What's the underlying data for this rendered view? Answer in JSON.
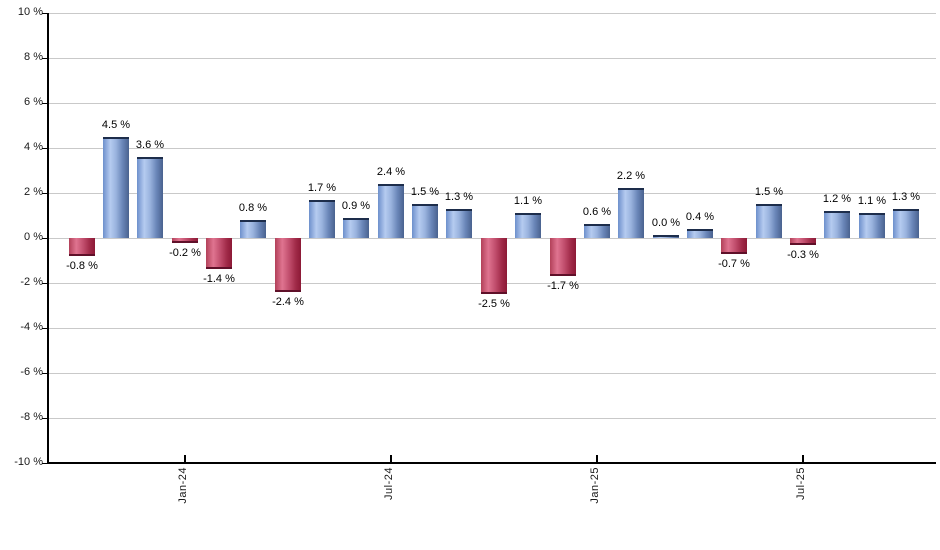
{
  "chart_data": {
    "type": "bar",
    "title": "",
    "xlabel": "",
    "ylabel": "",
    "ylim": [
      -10,
      10
    ],
    "grid": true,
    "legend": "none",
    "value_label_format": "signed percent with space, e.g. 4.5 %",
    "y_ticks": [
      {
        "value": 10,
        "label": "10 %"
      },
      {
        "value": 8,
        "label": "8 %"
      },
      {
        "value": 6,
        "label": "6 %"
      },
      {
        "value": 4,
        "label": "4 %"
      },
      {
        "value": 2,
        "label": "2 %"
      },
      {
        "value": 0,
        "label": "0 %"
      },
      {
        "value": -2,
        "label": "-2 %"
      },
      {
        "value": -4,
        "label": "-4 %"
      },
      {
        "value": -6,
        "label": "-6 %"
      },
      {
        "value": -8,
        "label": "-8 %"
      },
      {
        "value": -10,
        "label": "-10 %"
      }
    ],
    "x_tick_labels": [
      {
        "bar_index": 3,
        "label": "Jan-24"
      },
      {
        "bar_index": 9,
        "label": "Jul-24"
      },
      {
        "bar_index": 15,
        "label": "Jan-25"
      },
      {
        "bar_index": 21,
        "label": "Jul-25"
      }
    ],
    "bars": [
      {
        "value": -0.8,
        "label": "-0.8 %"
      },
      {
        "value": 4.5,
        "label": "4.5 %"
      },
      {
        "value": 3.6,
        "label": "3.6 %"
      },
      {
        "value": -0.2,
        "label": "-0.2 %"
      },
      {
        "value": -1.4,
        "label": "-1.4 %"
      },
      {
        "value": 0.8,
        "label": "0.8 %"
      },
      {
        "value": -2.4,
        "label": "-2.4 %"
      },
      {
        "value": 1.7,
        "label": "1.7 %"
      },
      {
        "value": 0.9,
        "label": "0.9 %"
      },
      {
        "value": 2.4,
        "label": "2.4 %"
      },
      {
        "value": 1.5,
        "label": "1.5 %"
      },
      {
        "value": 1.3,
        "label": "1.3 %"
      },
      {
        "value": -2.5,
        "label": "-2.5 %"
      },
      {
        "value": 1.1,
        "label": "1.1 %"
      },
      {
        "value": -1.7,
        "label": "-1.7 %"
      },
      {
        "value": 0.6,
        "label": "0.6 %"
      },
      {
        "value": 2.2,
        "label": "2.2 %"
      },
      {
        "value": 0.0,
        "label": "0.0 %"
      },
      {
        "value": 0.4,
        "label": "0.4 %"
      },
      {
        "value": -0.7,
        "label": "-0.7 %"
      },
      {
        "value": 1.5,
        "label": "1.5 %"
      },
      {
        "value": -0.3,
        "label": "-0.3 %"
      },
      {
        "value": 1.2,
        "label": "1.2 %"
      },
      {
        "value": 1.1,
        "label": "1.1 %"
      },
      {
        "value": 1.3,
        "label": "1.3 %"
      }
    ],
    "colors": {
      "positive_gradient": [
        "#6d90cc",
        "#b5cbf0",
        "#9ab3de",
        "#6a86b8",
        "#49628f"
      ],
      "positive_cap": "#1d2d4b",
      "negative_gradient": [
        "#b24059",
        "#df7490",
        "#c14e6d",
        "#a02a48",
        "#8c1936"
      ],
      "negative_cap": "#5f1029",
      "gridline": "#c9c9c9",
      "axis": "#000000",
      "background": "#ffffff"
    }
  }
}
